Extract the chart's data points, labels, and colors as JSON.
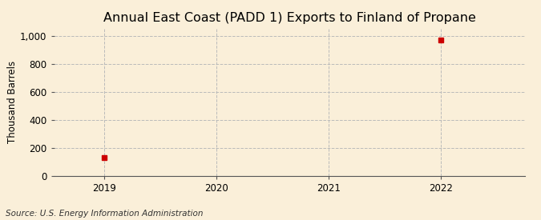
{
  "title": "Annual East Coast (PADD 1) Exports to Finland of Propane",
  "ylabel": "Thousand Barrels",
  "source": "Source: U.S. Energy Information Administration",
  "x_data": [
    2019,
    2022
  ],
  "y_data": [
    130,
    970
  ],
  "xlim": [
    2018.55,
    2022.75
  ],
  "ylim": [
    0,
    1050
  ],
  "yticks": [
    0,
    200,
    400,
    600,
    800,
    1000
  ],
  "ytick_labels": [
    "0",
    "200",
    "400",
    "600",
    "800",
    "1,000"
  ],
  "xticks": [
    2019,
    2020,
    2021,
    2022
  ],
  "xtick_labels": [
    "2019",
    "2020",
    "2021",
    "2022"
  ],
  "marker_color": "#cc0000",
  "marker": "s",
  "marker_size": 4,
  "bg_color": "#faefd9",
  "plot_bg_color": "#faefd9",
  "grid_color": "#bbbbbb",
  "title_fontsize": 11.5,
  "title_fontweight": "normal",
  "axis_label_fontsize": 8.5,
  "tick_fontsize": 8.5,
  "source_fontsize": 7.5
}
